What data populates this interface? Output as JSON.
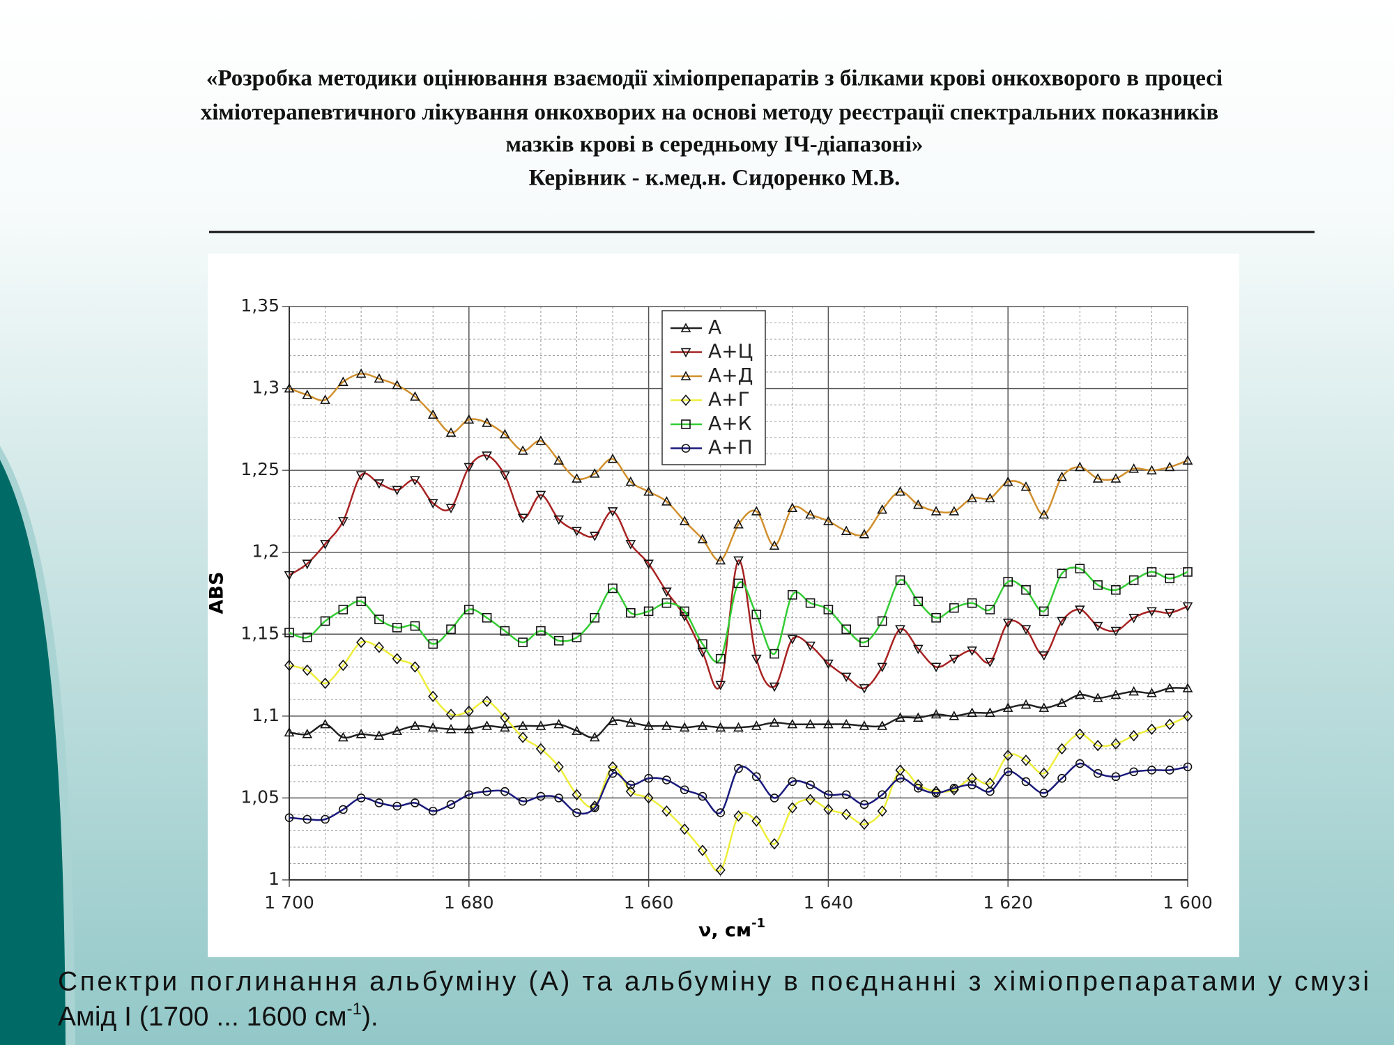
{
  "header": {
    "lines": [
      "«Розробка методики оцінювання взаємодії хіміопрепаратів з білками крові онкохворого в процесі",
      "хіміотерапевтичного лікування онкохворих на основі методу реєстрації спектральних показників",
      "мазків крові в середньому ІЧ-діапазоні»",
      "Керівник - к.мед.н. Сидоренко М.В."
    ]
  },
  "caption": {
    "line1": "Спектри поглинання альбуміну (А) та альбуміну в поєднанні з хіміопрепаратами у смузі",
    "line2": "Амід І (1700 ... 1600 см",
    "sup": "-1",
    "end": ")."
  },
  "chart_data": {
    "type": "line",
    "xlabel": "ν, см",
    "xlabel_sup": "-1",
    "ylabel": "ABS",
    "x": [
      1700,
      1698,
      1696,
      1694,
      1692,
      1690,
      1688,
      1686,
      1684,
      1682,
      1680,
      1678,
      1676,
      1674,
      1672,
      1670,
      1668,
      1666,
      1664,
      1662,
      1660,
      1658,
      1656,
      1654,
      1652,
      1650,
      1648,
      1646,
      1644,
      1642,
      1640,
      1638,
      1636,
      1634,
      1632,
      1630,
      1628,
      1626,
      1624,
      1622,
      1620,
      1618,
      1616,
      1614,
      1612,
      1610,
      1608,
      1606,
      1604,
      1602,
      1600
    ],
    "xlim": [
      1700,
      1600
    ],
    "xticks": [
      {
        "value": 1700,
        "label": "1 700"
      },
      {
        "value": 1680,
        "label": "1 680"
      },
      {
        "value": 1660,
        "label": "1 660"
      },
      {
        "value": 1640,
        "label": "1 640"
      },
      {
        "value": 1620,
        "label": "1 620"
      },
      {
        "value": 1600,
        "label": "1 600"
      }
    ],
    "ylim": [
      1,
      1.35
    ],
    "yticks": [
      1,
      {
        "value": 1.05,
        "label": "1,05"
      },
      {
        "value": 1.1,
        "label": "1,1"
      },
      {
        "value": 1.15,
        "label": "1,15"
      },
      {
        "value": 1.2,
        "label": "1,2"
      },
      {
        "value": 1.25,
        "label": "1,25"
      },
      {
        "value": 1.3,
        "label": "1,3"
      },
      {
        "value": 1.35,
        "label": "1,35"
      }
    ],
    "grid": true,
    "minor_grid": true,
    "legend": "upper center",
    "series": [
      {
        "name": "А",
        "color": "#222222",
        "marker": "triangle-up",
        "values": [
          1.09,
          1.089,
          1.095,
          1.087,
          1.089,
          1.088,
          1.091,
          1.094,
          1.093,
          1.092,
          1.092,
          1.094,
          1.093,
          1.094,
          1.094,
          1.095,
          1.091,
          1.087,
          1.097,
          1.096,
          1.094,
          1.094,
          1.093,
          1.094,
          1.093,
          1.093,
          1.094,
          1.096,
          1.095,
          1.095,
          1.095,
          1.095,
          1.094,
          1.094,
          1.099,
          1.099,
          1.101,
          1.1,
          1.102,
          1.102,
          1.105,
          1.107,
          1.105,
          1.108,
          1.113,
          1.111,
          1.113,
          1.115,
          1.114,
          1.117,
          1.117
        ]
      },
      {
        "name": "А+Ц",
        "color": "#a82222",
        "marker": "triangle-down",
        "values": [
          1.186,
          1.193,
          1.205,
          1.219,
          1.247,
          1.242,
          1.238,
          1.244,
          1.23,
          1.227,
          1.252,
          1.259,
          1.247,
          1.221,
          1.235,
          1.22,
          1.213,
          1.21,
          1.225,
          1.205,
          1.193,
          1.176,
          1.161,
          1.139,
          1.119,
          1.195,
          1.135,
          1.118,
          1.147,
          1.143,
          1.132,
          1.124,
          1.117,
          1.13,
          1.153,
          1.141,
          1.13,
          1.135,
          1.14,
          1.133,
          1.157,
          1.153,
          1.137,
          1.158,
          1.165,
          1.155,
          1.152,
          1.16,
          1.164,
          1.163,
          1.167
        ]
      },
      {
        "name": "А+Д",
        "color": "#d18f2c",
        "marker": "triangle-up",
        "values": [
          1.3,
          1.296,
          1.293,
          1.304,
          1.309,
          1.306,
          1.302,
          1.295,
          1.284,
          1.273,
          1.281,
          1.279,
          1.272,
          1.262,
          1.268,
          1.256,
          1.245,
          1.248,
          1.257,
          1.243,
          1.237,
          1.231,
          1.219,
          1.208,
          1.195,
          1.217,
          1.225,
          1.204,
          1.227,
          1.223,
          1.219,
          1.213,
          1.211,
          1.226,
          1.237,
          1.229,
          1.225,
          1.225,
          1.233,
          1.233,
          1.243,
          1.24,
          1.223,
          1.246,
          1.252,
          1.245,
          1.245,
          1.251,
          1.25,
          1.252,
          1.256
        ]
      },
      {
        "name": "А+Г",
        "color": "#eeee3a",
        "marker": "diamond",
        "values": [
          1.131,
          1.128,
          1.12,
          1.131,
          1.145,
          1.142,
          1.135,
          1.13,
          1.112,
          1.101,
          1.103,
          1.109,
          1.099,
          1.087,
          1.08,
          1.069,
          1.052,
          1.045,
          1.069,
          1.054,
          1.05,
          1.042,
          1.031,
          1.018,
          1.006,
          1.039,
          1.036,
          1.022,
          1.044,
          1.049,
          1.043,
          1.04,
          1.034,
          1.042,
          1.067,
          1.058,
          1.054,
          1.055,
          1.062,
          1.059,
          1.076,
          1.073,
          1.065,
          1.08,
          1.089,
          1.082,
          1.083,
          1.088,
          1.092,
          1.095,
          1.1
        ]
      },
      {
        "name": "А+К",
        "color": "#33cc33",
        "marker": "square",
        "values": [
          1.151,
          1.148,
          1.158,
          1.165,
          1.17,
          1.159,
          1.154,
          1.155,
          1.144,
          1.153,
          1.165,
          1.16,
          1.152,
          1.145,
          1.152,
          1.146,
          1.148,
          1.16,
          1.178,
          1.163,
          1.164,
          1.169,
          1.164,
          1.144,
          1.135,
          1.181,
          1.162,
          1.138,
          1.174,
          1.169,
          1.165,
          1.153,
          1.145,
          1.158,
          1.183,
          1.17,
          1.16,
          1.166,
          1.169,
          1.165,
          1.182,
          1.177,
          1.164,
          1.187,
          1.19,
          1.18,
          1.177,
          1.183,
          1.188,
          1.184,
          1.188
        ]
      },
      {
        "name": "А+П",
        "color": "#1a1a7e",
        "marker": "circle",
        "values": [
          1.038,
          1.037,
          1.037,
          1.043,
          1.05,
          1.047,
          1.045,
          1.047,
          1.042,
          1.046,
          1.052,
          1.054,
          1.054,
          1.048,
          1.051,
          1.05,
          1.041,
          1.044,
          1.065,
          1.058,
          1.062,
          1.061,
          1.055,
          1.051,
          1.041,
          1.068,
          1.063,
          1.05,
          1.06,
          1.058,
          1.052,
          1.052,
          1.046,
          1.052,
          1.062,
          1.056,
          1.053,
          1.056,
          1.058,
          1.054,
          1.066,
          1.06,
          1.053,
          1.062,
          1.071,
          1.065,
          1.063,
          1.066,
          1.067,
          1.067,
          1.069
        ]
      }
    ]
  }
}
